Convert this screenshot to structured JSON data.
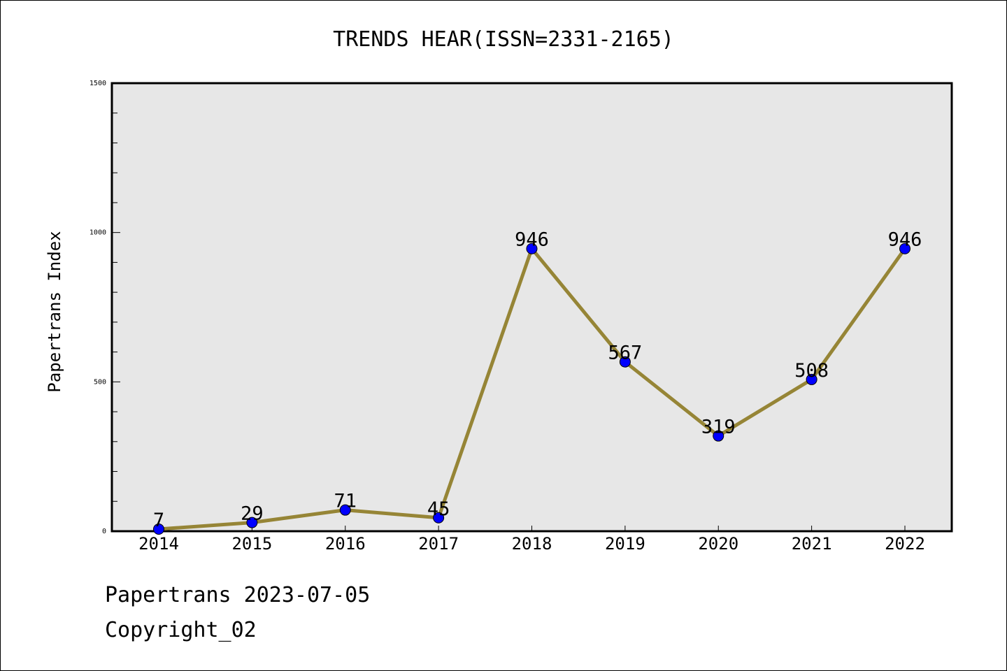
{
  "chart_data": {
    "type": "line",
    "title": "TRENDS HEAR(ISSN=2331-2165)",
    "xlabel": "",
    "ylabel": "Papertrans Index",
    "categories": [
      "2014",
      "2015",
      "2016",
      "2017",
      "2018",
      "2019",
      "2020",
      "2021",
      "2022"
    ],
    "series": [
      {
        "values": [
          7,
          29,
          71,
          45,
          946,
          567,
          319,
          508,
          946
        ]
      }
    ],
    "data_labels": [
      "7",
      "29",
      "71",
      "45",
      "946",
      "567",
      "319",
      "508",
      "946"
    ],
    "ylim": [
      0,
      1500
    ],
    "yticks": [
      0,
      500,
      1000,
      1500
    ],
    "ytick_labels": [
      "0",
      "500",
      "1000",
      "1500"
    ],
    "grid": false,
    "legend": "none",
    "colors": {
      "line": "#968536",
      "marker": "#0000ff",
      "plot_background": "#e7e7e7"
    }
  },
  "footer": {
    "line1": "Papertrans 2023-07-05",
    "line2": "Copyright_02"
  }
}
